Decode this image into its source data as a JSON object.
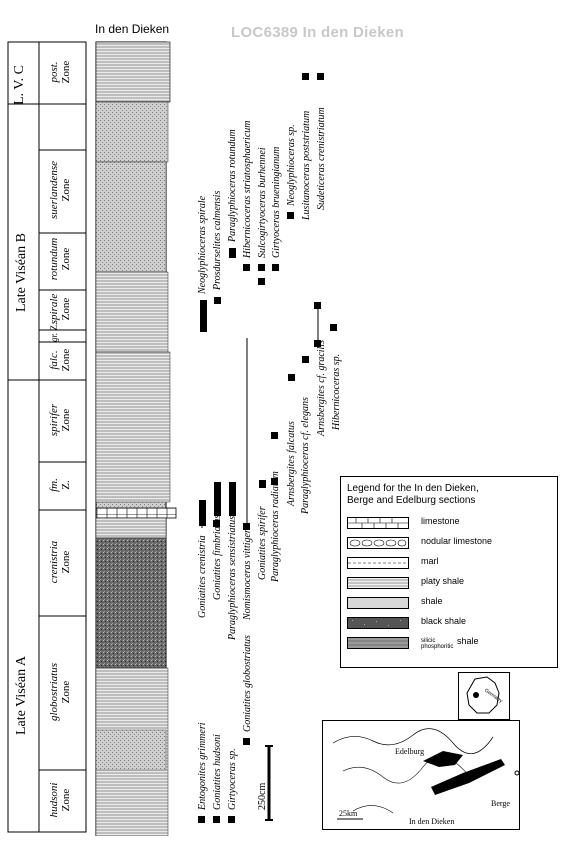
{
  "header": {
    "locality": "LOC6389  In den Dieken",
    "column_title": "In den Dieken"
  },
  "stages": {
    "late_visean_a": "Late Viséan A",
    "late_visean_b": "Late Viséan B",
    "lvc": "L. V. C"
  },
  "zones": [
    {
      "name": "hudsoni",
      "suffix": "Zone"
    },
    {
      "name": "globostriatus",
      "suffix": "Zone"
    },
    {
      "name": "crenistria",
      "suffix": "Zone"
    },
    {
      "name": "fm.",
      "suffix": "Z."
    },
    {
      "name": "spirifer",
      "suffix": "Zone"
    },
    {
      "name": "falc.",
      "suffix": "Zone"
    },
    {
      "name": "gr.",
      "suffix": "Z."
    },
    {
      "name": "spirale",
      "suffix": "Zone"
    },
    {
      "name": "rotundum",
      "suffix": "Zone"
    },
    {
      "name": "suerlandense",
      "suffix": "Zone"
    },
    {
      "name": "post.",
      "suffix": "Zone"
    }
  ],
  "taxa": [
    "Entogonites grimmeri",
    "Goniatites hudsoni",
    "Girtyoceras sp.",
    "Goniatites globostriatus",
    "Goniatites crenistria",
    "Goniatites fimbriatus",
    "Paraglyphioceras sensistriatus",
    "Nomismoceras vittiger",
    "Goniatites spirifer",
    "Paraglyphioceras radiatum",
    "Arnsbergites falcatus",
    "Paraglyphioceras cf. elegans",
    "Arnsbergites cf. gracilis",
    "Hibernicoceras sp.",
    "Neoglyphioceras spirale",
    "Prosdurselites calmensis",
    "Paraglyphioceras rotundum",
    "Hibernicoceras striatosphaericum",
    "Sulcogirtyoceras burhennei",
    "Girtyoceras brueningianum",
    "Neoglyphioceras sp.",
    "Lusitanoceras poststriatum",
    "Sudeticeras crenistriatum"
  ],
  "scale": {
    "label": "250cm"
  },
  "legend": {
    "title_line1": "Legend for the In den Dieken,",
    "title_line2": "Berge and Edelburg sections",
    "items": [
      {
        "label": "limestone",
        "fill": "#ffffff",
        "pattern": "brick"
      },
      {
        "label": "nodular limestone",
        "fill": "#ffffff",
        "pattern": "nodular"
      },
      {
        "label": "marl",
        "fill": "#ffffff",
        "pattern": "marl"
      },
      {
        "label": "platy shale",
        "fill": "#ffffff",
        "pattern": "platy"
      },
      {
        "label": "shale",
        "fill": "#d8d8d8",
        "pattern": "shale"
      },
      {
        "label": "black shale",
        "fill": "#555555",
        "pattern": "black"
      },
      {
        "label_pre": "silicic phosphoritic",
        "label": "shale",
        "fill": "#999999",
        "pattern": "silicic"
      }
    ]
  },
  "map": {
    "labels": {
      "edelburg": "Edelburg",
      "berge": "Berge",
      "in_den_dieken": "In den Dieken"
    },
    "scale": "25km",
    "inset_label": "Germany"
  }
}
